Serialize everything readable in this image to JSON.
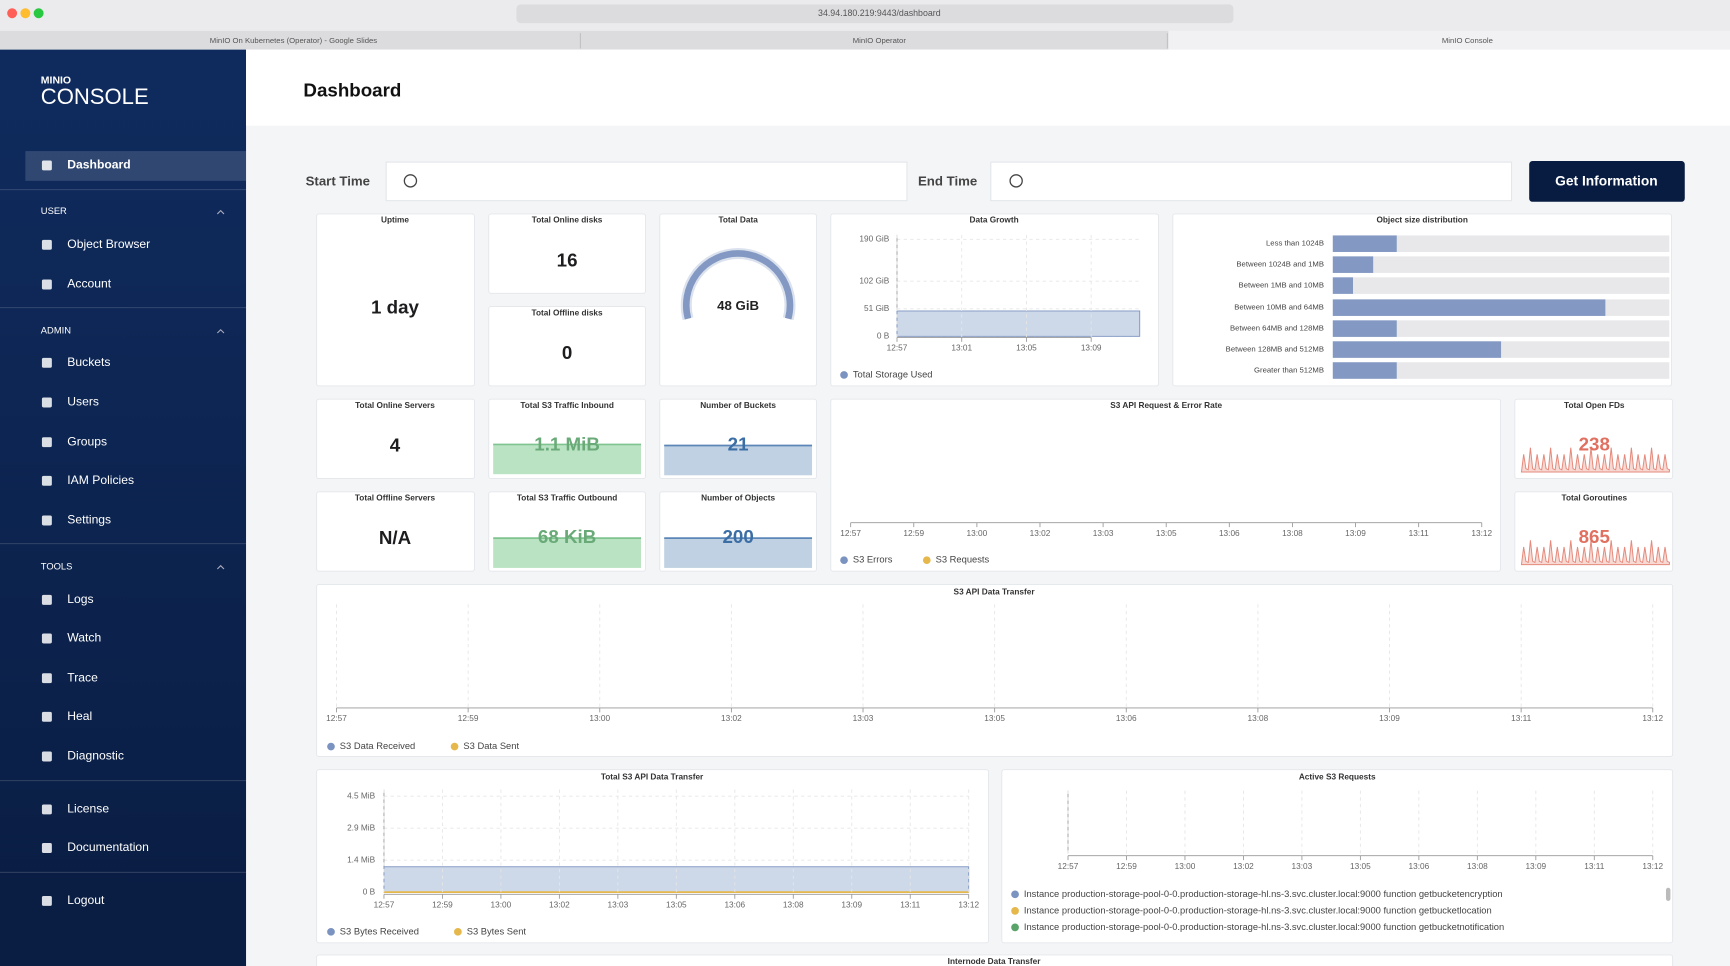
{
  "browser": {
    "url": "34.94.180.219:9443/dashboard",
    "tabs": [
      "MinIO On Kubernetes (Operator) - Google Slides",
      "MinIO Operator",
      "MinIO Console"
    ]
  },
  "sidebar": {
    "brand_top": "MINIO",
    "brand": "CONSOLE",
    "dashboard": "Dashboard",
    "sections": [
      {
        "title": "USER",
        "items": [
          "Object Browser",
          "Account"
        ]
      },
      {
        "title": "ADMIN",
        "items": [
          "Buckets",
          "Users",
          "Groups",
          "IAM Policies",
          "Settings"
        ]
      },
      {
        "title": "TOOLS",
        "items": [
          "Logs",
          "Watch",
          "Trace",
          "Heal",
          "Diagnostic"
        ]
      }
    ],
    "footer": [
      "License",
      "Documentation"
    ],
    "logout": "Logout"
  },
  "page": {
    "title": "Dashboard"
  },
  "filters": {
    "start_label": "Start Time",
    "end_label": "End Time",
    "button": "Get Information"
  },
  "widgets": {
    "uptime": {
      "title": "Uptime",
      "value": "1 day"
    },
    "online_disks": {
      "title": "Total Online disks",
      "value": 16
    },
    "offline_disks": {
      "title": "Total Offline disks",
      "value": 0
    },
    "total_data": {
      "title": "Total Data",
      "value": "48 GiB"
    },
    "data_growth": {
      "title": "Data Growth",
      "y_labels": [
        "190 GiB",
        "102 GiB",
        "51 GiB",
        "0 B"
      ],
      "x_labels": [
        "12:57",
        "13:01",
        "13:05",
        "13:09"
      ],
      "legend": "Total Storage Used"
    },
    "object_size": {
      "title": "Object size distribution",
      "categories": [
        "Less than 1024B",
        "Between 1024B and 1MB",
        "Between 1MB and 10MB",
        "Between 10MB and 64MB",
        "Between 64MB and 128MB",
        "Between 128MB and 512MB",
        "Greater than 512MB"
      ],
      "values": [
        19,
        12,
        6,
        81,
        19,
        50,
        19
      ],
      "xlim": [
        0,
        100
      ]
    },
    "online_servers": {
      "title": "Total Online Servers",
      "value": 4
    },
    "offline_servers": {
      "title": "Total Offline Servers",
      "value": "N/A"
    },
    "traffic_inbound": {
      "title": "Total S3 Traffic Inbound",
      "value": "1.1 MiB"
    },
    "traffic_outbound": {
      "title": "Total S3 Traffic Outbound",
      "value": "68 KiB"
    },
    "buckets": {
      "title": "Number of Buckets",
      "value": 21
    },
    "objects": {
      "title": "Number of Objects",
      "value": 200
    },
    "request_rate": {
      "title": "S3 API Request & Error Rate",
      "x_labels": [
        "12:57",
        "12:59",
        "13:00",
        "13:02",
        "13:03",
        "13:05",
        "13:06",
        "13:08",
        "13:09",
        "13:11",
        "13:12"
      ],
      "legend": [
        "S3 Errors",
        "S3 Requests"
      ]
    },
    "open_fds": {
      "title": "Total Open FDs",
      "value": 238
    },
    "goroutines": {
      "title": "Total Goroutines",
      "value": 865
    },
    "data_transfer": {
      "title": "S3 API Data Transfer",
      "x_labels": [
        "12:57",
        "12:59",
        "13:00",
        "13:02",
        "13:03",
        "13:05",
        "13:06",
        "13:08",
        "13:09",
        "13:11",
        "13:12"
      ],
      "legend": [
        "S3 Data Received",
        "S3 Data Sent"
      ]
    },
    "total_transfer": {
      "title": "Total S3 API Data Transfer",
      "y_labels": [
        "4.5 MiB",
        "2.9 MiB",
        "1.4 MiB",
        "0 B"
      ],
      "x_labels": [
        "12:57",
        "12:59",
        "13:00",
        "13:02",
        "13:03",
        "13:05",
        "13:06",
        "13:08",
        "13:09",
        "13:11",
        "13:12"
      ],
      "legend": [
        "S3 Bytes Received",
        "S3 Bytes Sent"
      ]
    },
    "active_requests": {
      "title": "Active S3 Requests",
      "x_labels": [
        "12:57",
        "12:59",
        "13:00",
        "13:02",
        "13:03",
        "13:05",
        "13:06",
        "13:08",
        "13:09",
        "13:11",
        "13:12"
      ],
      "legend": [
        "Instance production-storage-pool-0-0.production-storage-hl.ns-3.svc.cluster.local:9000 function getbucketencryption",
        "Instance production-storage-pool-0-0.production-storage-hl.ns-3.svc.cluster.local:9000 function getbucketlocation",
        "Instance production-storage-pool-0-0.production-storage-hl.ns-3.svc.cluster.local:9000 function getbucketnotification"
      ]
    },
    "internode": {
      "title": "Internode Data Transfer"
    }
  }
}
